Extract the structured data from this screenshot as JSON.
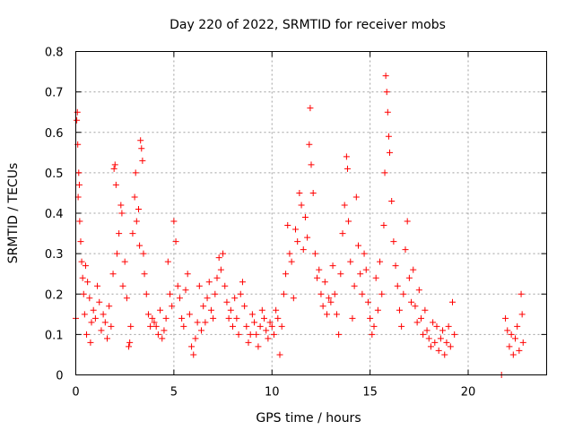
{
  "chart_data": {
    "type": "scatter",
    "title": "Day 220 of 2022, SRMTID for receiver mobs",
    "xlabel": "GPS time / hours",
    "ylabel": "SRMTID / TECUs",
    "xlim": [
      0,
      24
    ],
    "ylim": [
      0,
      0.8
    ],
    "xticks": [
      0,
      5,
      10,
      15,
      20
    ],
    "yticks": [
      0,
      0.1,
      0.2,
      0.3,
      0.4,
      0.5,
      0.6,
      0.7,
      0.8
    ],
    "xtick_labels": [
      "0",
      "5",
      "10",
      "15",
      "20"
    ],
    "ytick_labels": [
      "0",
      "0.1",
      "0.2",
      "0.3",
      "0.4",
      "0.5",
      "0.6",
      "0.7",
      "0.8"
    ],
    "grid": true,
    "marker": "+",
    "color": "#ff0000",
    "series": [
      {
        "name": "SRMTID",
        "points": [
          [
            0.0,
            0.14
          ],
          [
            0.05,
            0.63
          ],
          [
            0.08,
            0.65
          ],
          [
            0.1,
            0.57
          ],
          [
            0.12,
            0.44
          ],
          [
            0.15,
            0.5
          ],
          [
            0.18,
            0.47
          ],
          [
            0.2,
            0.38
          ],
          [
            0.25,
            0.33
          ],
          [
            0.3,
            0.28
          ],
          [
            0.35,
            0.24
          ],
          [
            0.4,
            0.2
          ],
          [
            0.45,
            0.15
          ],
          [
            0.5,
            0.27
          ],
          [
            0.55,
            0.1
          ],
          [
            0.6,
            0.23
          ],
          [
            0.7,
            0.19
          ],
          [
            0.75,
            0.08
          ],
          [
            0.8,
            0.13
          ],
          [
            0.9,
            0.16
          ],
          [
            1.0,
            0.14
          ],
          [
            1.1,
            0.22
          ],
          [
            1.2,
            0.18
          ],
          [
            1.3,
            0.11
          ],
          [
            1.4,
            0.15
          ],
          [
            1.5,
            0.13
          ],
          [
            1.6,
            0.09
          ],
          [
            1.7,
            0.17
          ],
          [
            1.8,
            0.12
          ],
          [
            1.9,
            0.25
          ],
          [
            1.95,
            0.51
          ],
          [
            2.0,
            0.52
          ],
          [
            2.05,
            0.47
          ],
          [
            2.1,
            0.3
          ],
          [
            2.2,
            0.35
          ],
          [
            2.3,
            0.42
          ],
          [
            2.35,
            0.4
          ],
          [
            2.4,
            0.22
          ],
          [
            2.5,
            0.28
          ],
          [
            2.6,
            0.19
          ],
          [
            2.7,
            0.07
          ],
          [
            2.75,
            0.08
          ],
          [
            2.8,
            0.12
          ],
          [
            2.9,
            0.35
          ],
          [
            3.0,
            0.44
          ],
          [
            3.05,
            0.5
          ],
          [
            3.1,
            0.38
          ],
          [
            3.2,
            0.41
          ],
          [
            3.25,
            0.32
          ],
          [
            3.3,
            0.58
          ],
          [
            3.35,
            0.56
          ],
          [
            3.4,
            0.53
          ],
          [
            3.45,
            0.3
          ],
          [
            3.5,
            0.25
          ],
          [
            3.6,
            0.2
          ],
          [
            3.7,
            0.15
          ],
          [
            3.8,
            0.12
          ],
          [
            3.9,
            0.14
          ],
          [
            4.0,
            0.13
          ],
          [
            4.1,
            0.12
          ],
          [
            4.2,
            0.1
          ],
          [
            4.3,
            0.16
          ],
          [
            4.4,
            0.09
          ],
          [
            4.5,
            0.11
          ],
          [
            4.6,
            0.14
          ],
          [
            4.7,
            0.28
          ],
          [
            4.8,
            0.2
          ],
          [
            4.9,
            0.17
          ],
          [
            5.0,
            0.38
          ],
          [
            5.1,
            0.33
          ],
          [
            5.2,
            0.22
          ],
          [
            5.3,
            0.19
          ],
          [
            5.4,
            0.14
          ],
          [
            5.5,
            0.12
          ],
          [
            5.6,
            0.21
          ],
          [
            5.7,
            0.25
          ],
          [
            5.8,
            0.15
          ],
          [
            5.9,
            0.07
          ],
          [
            6.0,
            0.05
          ],
          [
            6.1,
            0.09
          ],
          [
            6.2,
            0.13
          ],
          [
            6.3,
            0.22
          ],
          [
            6.4,
            0.11
          ],
          [
            6.5,
            0.17
          ],
          [
            6.6,
            0.13
          ],
          [
            6.7,
            0.19
          ],
          [
            6.8,
            0.23
          ],
          [
            6.9,
            0.16
          ],
          [
            7.0,
            0.14
          ],
          [
            7.1,
            0.2
          ],
          [
            7.2,
            0.24
          ],
          [
            7.3,
            0.29
          ],
          [
            7.4,
            0.26
          ],
          [
            7.5,
            0.3
          ],
          [
            7.6,
            0.22
          ],
          [
            7.7,
            0.18
          ],
          [
            7.8,
            0.14
          ],
          [
            7.9,
            0.16
          ],
          [
            8.0,
            0.12
          ],
          [
            8.1,
            0.19
          ],
          [
            8.2,
            0.14
          ],
          [
            8.3,
            0.1
          ],
          [
            8.4,
            0.2
          ],
          [
            8.5,
            0.23
          ],
          [
            8.6,
            0.17
          ],
          [
            8.7,
            0.12
          ],
          [
            8.8,
            0.08
          ],
          [
            8.9,
            0.1
          ],
          [
            9.0,
            0.15
          ],
          [
            9.1,
            0.13
          ],
          [
            9.2,
            0.1
          ],
          [
            9.3,
            0.07
          ],
          [
            9.4,
            0.12
          ],
          [
            9.5,
            0.16
          ],
          [
            9.6,
            0.14
          ],
          [
            9.7,
            0.11
          ],
          [
            9.8,
            0.09
          ],
          [
            9.9,
            0.13
          ],
          [
            10.0,
            0.12
          ],
          [
            10.1,
            0.1
          ],
          [
            10.2,
            0.16
          ],
          [
            10.3,
            0.14
          ],
          [
            10.4,
            0.05
          ],
          [
            10.5,
            0.12
          ],
          [
            10.6,
            0.2
          ],
          [
            10.7,
            0.25
          ],
          [
            10.8,
            0.37
          ],
          [
            10.9,
            0.3
          ],
          [
            11.0,
            0.28
          ],
          [
            11.1,
            0.19
          ],
          [
            11.2,
            0.36
          ],
          [
            11.3,
            0.33
          ],
          [
            11.4,
            0.45
          ],
          [
            11.5,
            0.42
          ],
          [
            11.6,
            0.31
          ],
          [
            11.7,
            0.39
          ],
          [
            11.8,
            0.34
          ],
          [
            11.9,
            0.57
          ],
          [
            11.95,
            0.66
          ],
          [
            12.0,
            0.52
          ],
          [
            12.1,
            0.45
          ],
          [
            12.2,
            0.3
          ],
          [
            12.3,
            0.24
          ],
          [
            12.4,
            0.26
          ],
          [
            12.5,
            0.2
          ],
          [
            12.6,
            0.17
          ],
          [
            12.7,
            0.23
          ],
          [
            12.8,
            0.15
          ],
          [
            12.9,
            0.19
          ],
          [
            13.0,
            0.18
          ],
          [
            13.1,
            0.27
          ],
          [
            13.2,
            0.2
          ],
          [
            13.3,
            0.15
          ],
          [
            13.4,
            0.1
          ],
          [
            13.5,
            0.25
          ],
          [
            13.6,
            0.35
          ],
          [
            13.7,
            0.42
          ],
          [
            13.8,
            0.54
          ],
          [
            13.85,
            0.51
          ],
          [
            13.9,
            0.38
          ],
          [
            14.0,
            0.28
          ],
          [
            14.1,
            0.14
          ],
          [
            14.2,
            0.22
          ],
          [
            14.3,
            0.44
          ],
          [
            14.4,
            0.32
          ],
          [
            14.5,
            0.25
          ],
          [
            14.6,
            0.2
          ],
          [
            14.7,
            0.3
          ],
          [
            14.8,
            0.26
          ],
          [
            14.9,
            0.18
          ],
          [
            15.0,
            0.14
          ],
          [
            15.1,
            0.1
          ],
          [
            15.2,
            0.12
          ],
          [
            15.3,
            0.24
          ],
          [
            15.4,
            0.16
          ],
          [
            15.5,
            0.28
          ],
          [
            15.6,
            0.2
          ],
          [
            15.7,
            0.37
          ],
          [
            15.75,
            0.5
          ],
          [
            15.8,
            0.74
          ],
          [
            15.85,
            0.7
          ],
          [
            15.9,
            0.65
          ],
          [
            15.95,
            0.59
          ],
          [
            16.0,
            0.55
          ],
          [
            16.1,
            0.43
          ],
          [
            16.2,
            0.33
          ],
          [
            16.3,
            0.27
          ],
          [
            16.4,
            0.22
          ],
          [
            16.5,
            0.16
          ],
          [
            16.6,
            0.12
          ],
          [
            16.7,
            0.2
          ],
          [
            16.8,
            0.31
          ],
          [
            16.9,
            0.38
          ],
          [
            17.0,
            0.24
          ],
          [
            17.1,
            0.18
          ],
          [
            17.2,
            0.26
          ],
          [
            17.3,
            0.17
          ],
          [
            17.4,
            0.13
          ],
          [
            17.5,
            0.21
          ],
          [
            17.6,
            0.14
          ],
          [
            17.7,
            0.1
          ],
          [
            17.8,
            0.16
          ],
          [
            17.9,
            0.11
          ],
          [
            18.0,
            0.09
          ],
          [
            18.1,
            0.07
          ],
          [
            18.2,
            0.13
          ],
          [
            18.3,
            0.08
          ],
          [
            18.4,
            0.12
          ],
          [
            18.5,
            0.06
          ],
          [
            18.6,
            0.09
          ],
          [
            18.7,
            0.11
          ],
          [
            18.8,
            0.05
          ],
          [
            18.9,
            0.08
          ],
          [
            19.0,
            0.12
          ],
          [
            19.1,
            0.07
          ],
          [
            19.2,
            0.18
          ],
          [
            19.3,
            0.1
          ],
          [
            21.7,
            0.0
          ],
          [
            21.9,
            0.14
          ],
          [
            22.0,
            0.11
          ],
          [
            22.1,
            0.07
          ],
          [
            22.2,
            0.1
          ],
          [
            22.3,
            0.05
          ],
          [
            22.4,
            0.09
          ],
          [
            22.5,
            0.12
          ],
          [
            22.6,
            0.06
          ],
          [
            22.7,
            0.2
          ],
          [
            22.75,
            0.15
          ],
          [
            22.8,
            0.08
          ]
        ]
      }
    ]
  }
}
